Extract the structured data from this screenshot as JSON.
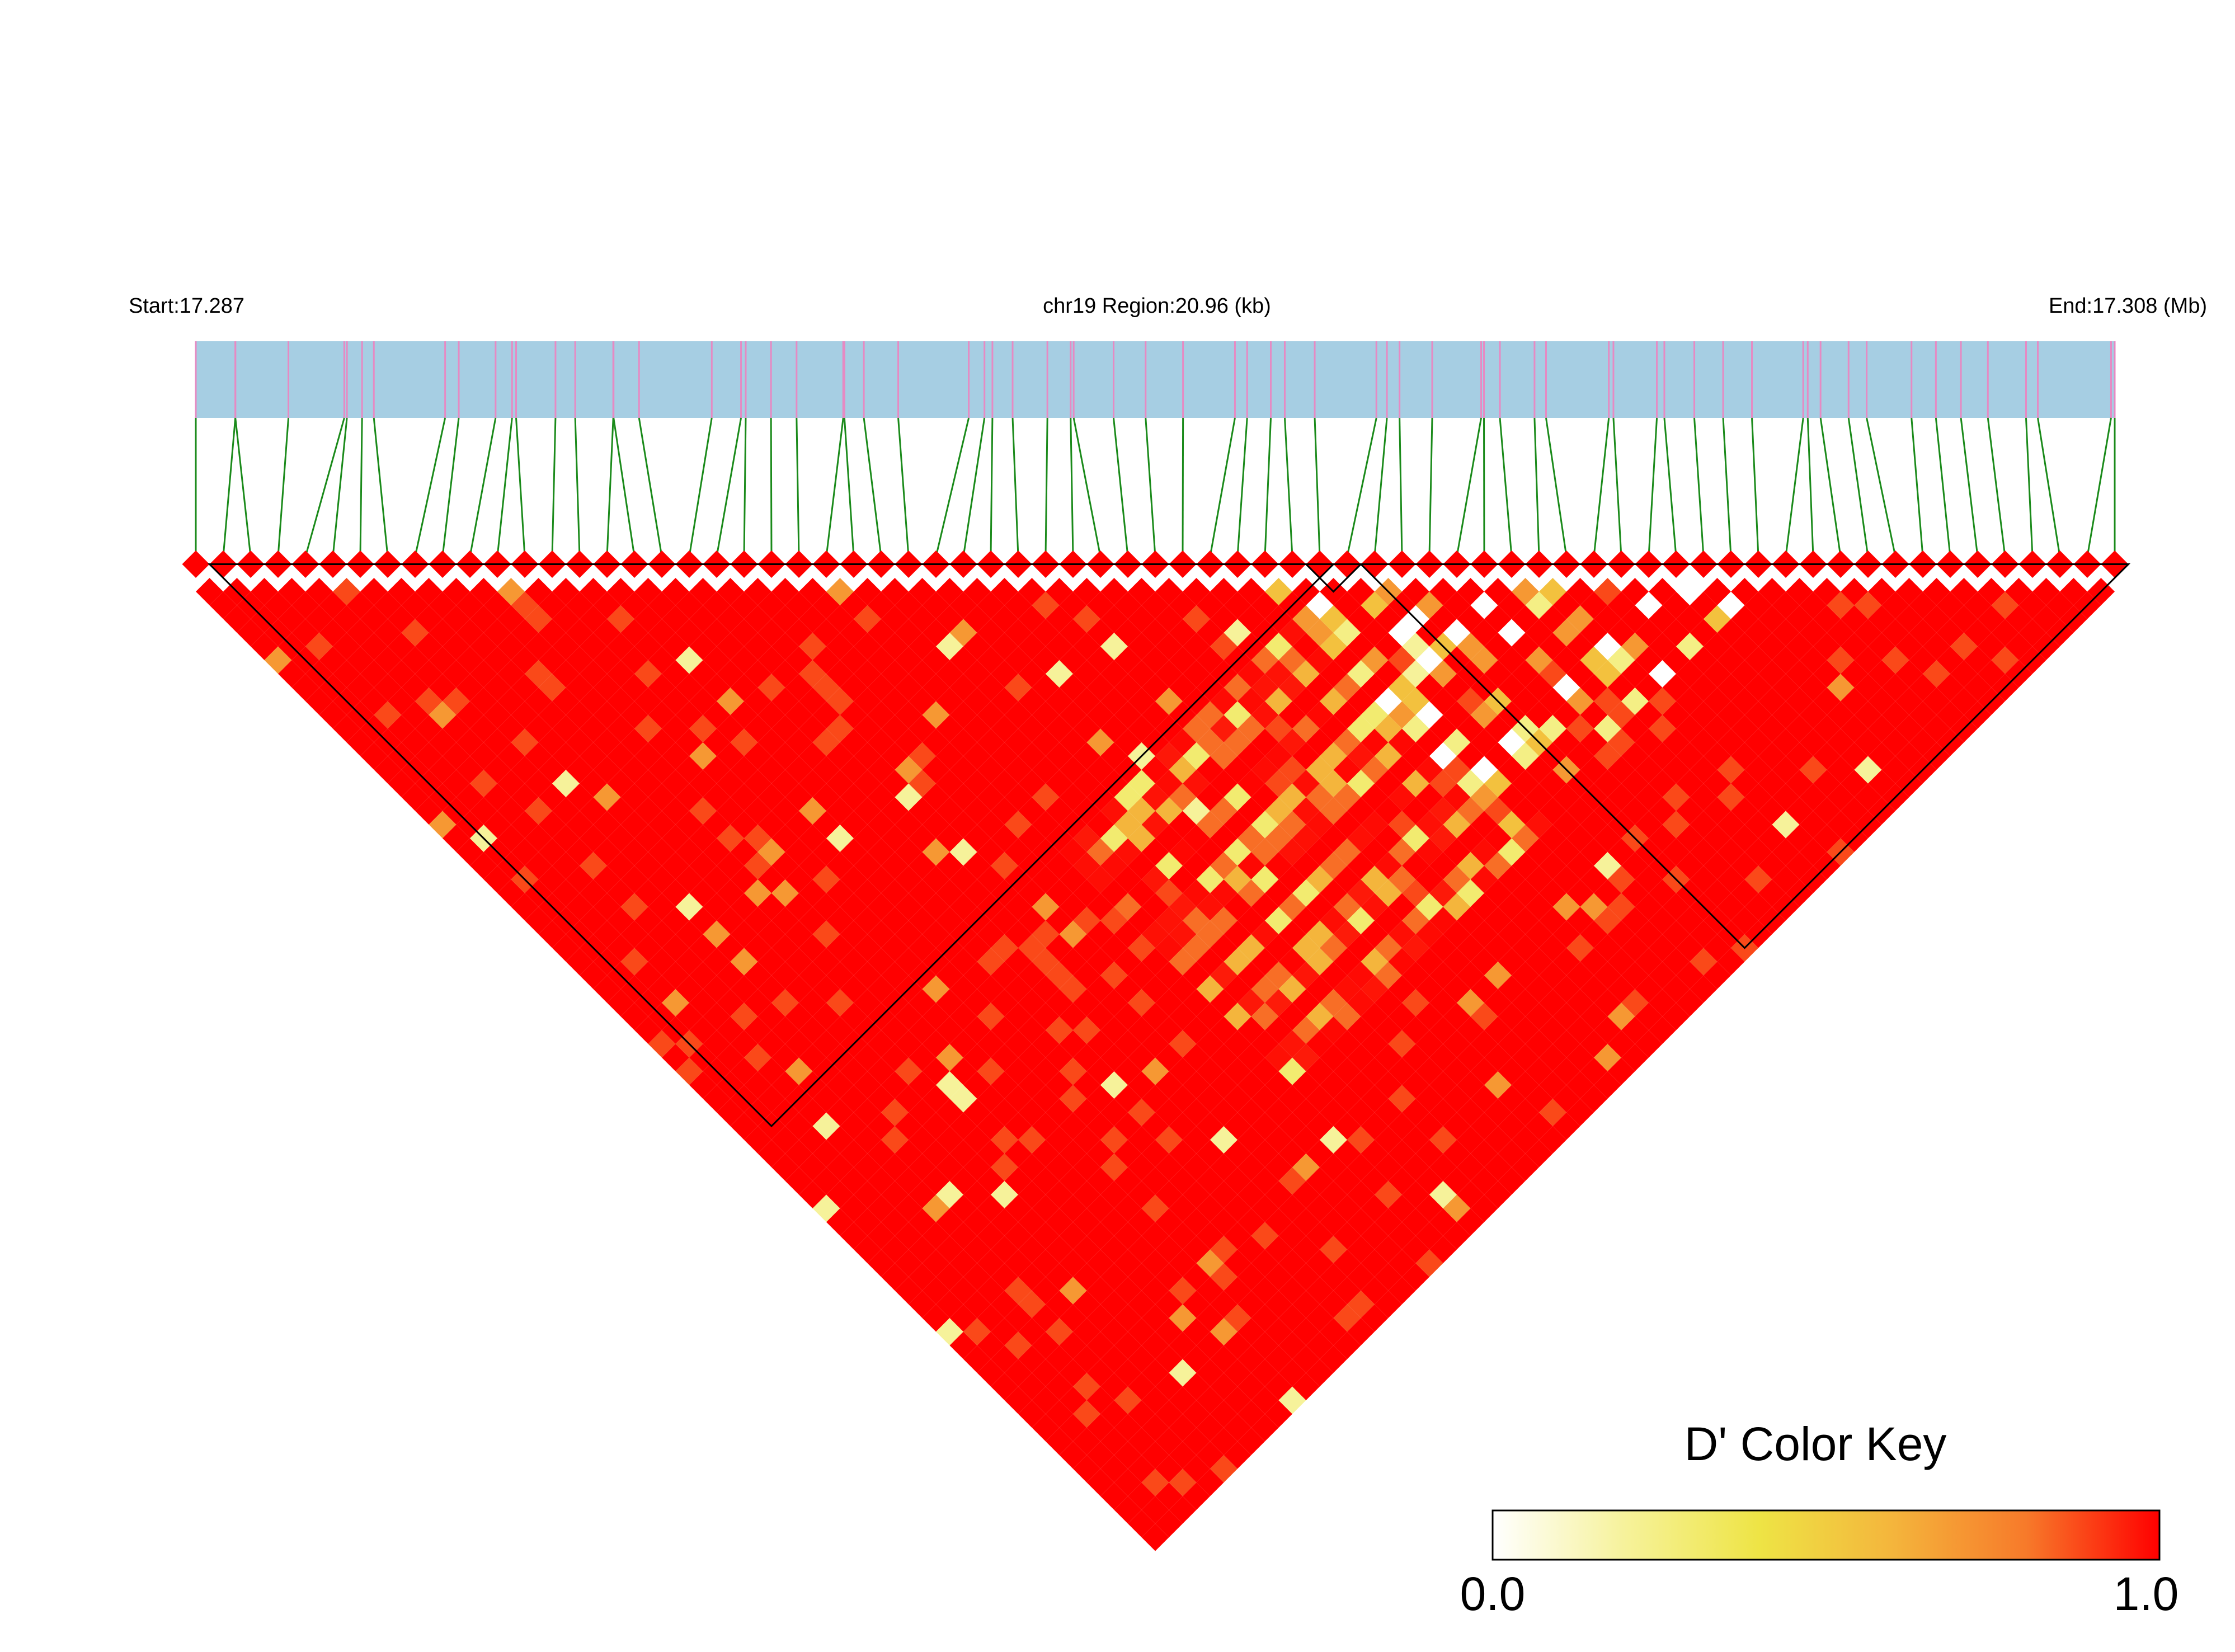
{
  "header": {
    "start_label": "Start:17.287",
    "region_label": "chr19 Region:20.96 (kb)",
    "end_label": "End:17.308 (Mb)"
  },
  "colors": {
    "track_fill": "#a6cee3",
    "snp_tick": "#e68ac3",
    "connector": "#1a8a1a",
    "ld_high": "#ff0000",
    "block_border": "#000000"
  },
  "legend": {
    "title": "D' Color Key",
    "min_label": "0.0",
    "max_label": "1.0",
    "gradient_stops": [
      "#ffffff",
      "#f6f29a",
      "#eee445",
      "#f4b53c",
      "#f77a2a",
      "#ff0000"
    ]
  },
  "chart_data": {
    "type": "heatmap",
    "title": "",
    "value_name": "D'",
    "region_start_mb": 17.287,
    "region_end_mb": 17.308,
    "region_kb": 20.96,
    "snp_count": 71,
    "value_range": [
      0.0,
      1.0
    ],
    "haplotype_blocks": [
      {
        "first_snp": 2,
        "last_snp": 42
      },
      {
        "first_snp": 42,
        "last_snp": 43
      },
      {
        "first_snp": 44,
        "last_snp": 71
      }
    ],
    "low_ld_band": {
      "first_snp": 40,
      "last_snp": 58
    }
  }
}
